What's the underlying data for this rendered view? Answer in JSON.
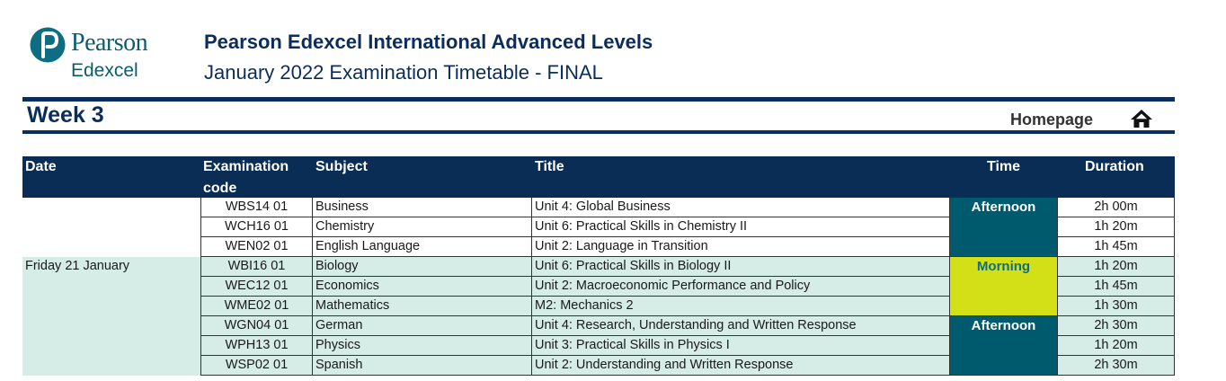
{
  "brand": {
    "line1": "Pearson",
    "line2": "Edexcel",
    "mark_color": "#0d6e83"
  },
  "header": {
    "title": "Pearson Edexcel International Advanced Levels",
    "subtitle": "January 2022 Examination Timetable - FINAL"
  },
  "week_label": "Week 3",
  "homepage_label": "Homepage",
  "icons": {
    "home": "home-icon",
    "logo": "pearson-p-logo"
  },
  "colors": {
    "navy": "#0a2d55",
    "teal": "#005a6e",
    "mint": "#d6ece7",
    "lime": "#d3e018",
    "morning_text": "#0d6e83"
  },
  "table": {
    "headers": [
      "Date",
      "Examination code",
      "Subject",
      "Title",
      "Time",
      "Duration"
    ],
    "groups": [
      {
        "date": "",
        "rows": [
          {
            "code": "WBS14 01",
            "subject": "Business",
            "title": "Unit 4: Global Business",
            "duration": "2h 00m"
          },
          {
            "code": "WCH16 01",
            "subject": "Chemistry",
            "title": "Unit 6: Practical Skills in Chemistry II",
            "duration": "1h 20m"
          },
          {
            "code": "WEN02 01",
            "subject": "English Language",
            "title": "Unit 2: Language in Transition",
            "duration": "1h 45m"
          }
        ],
        "sessions": [
          {
            "label": "Afternoon",
            "rows": 3
          }
        ]
      },
      {
        "date": "Friday 21 January",
        "rows": [
          {
            "code": "WBI16 01",
            "subject": "Biology",
            "title": "Unit 6: Practical Skills in Biology II",
            "duration": "1h 20m"
          },
          {
            "code": "WEC12 01",
            "subject": "Economics",
            "title": "Unit 2: Macroeconomic Performance and Policy",
            "duration": "1h 45m"
          },
          {
            "code": "WME02 01",
            "subject": "Mathematics",
            "title": "M2: Mechanics 2",
            "duration": "1h 30m"
          },
          {
            "code": "WGN04 01",
            "subject": "German",
            "title": "Unit 4: Research, Understanding and Written Response",
            "duration": "2h 30m"
          },
          {
            "code": "WPH13 01",
            "subject": "Physics",
            "title": "Unit 3: Practical Skills in Physics I",
            "duration": "1h 20m"
          },
          {
            "code": "WSP02 01",
            "subject": "Spanish",
            "title": "Unit 2: Understanding and Written Response",
            "duration": "2h 30m"
          }
        ],
        "sessions": [
          {
            "label": "Morning",
            "rows": 3
          },
          {
            "label": "Afternoon",
            "rows": 3
          }
        ]
      }
    ]
  }
}
